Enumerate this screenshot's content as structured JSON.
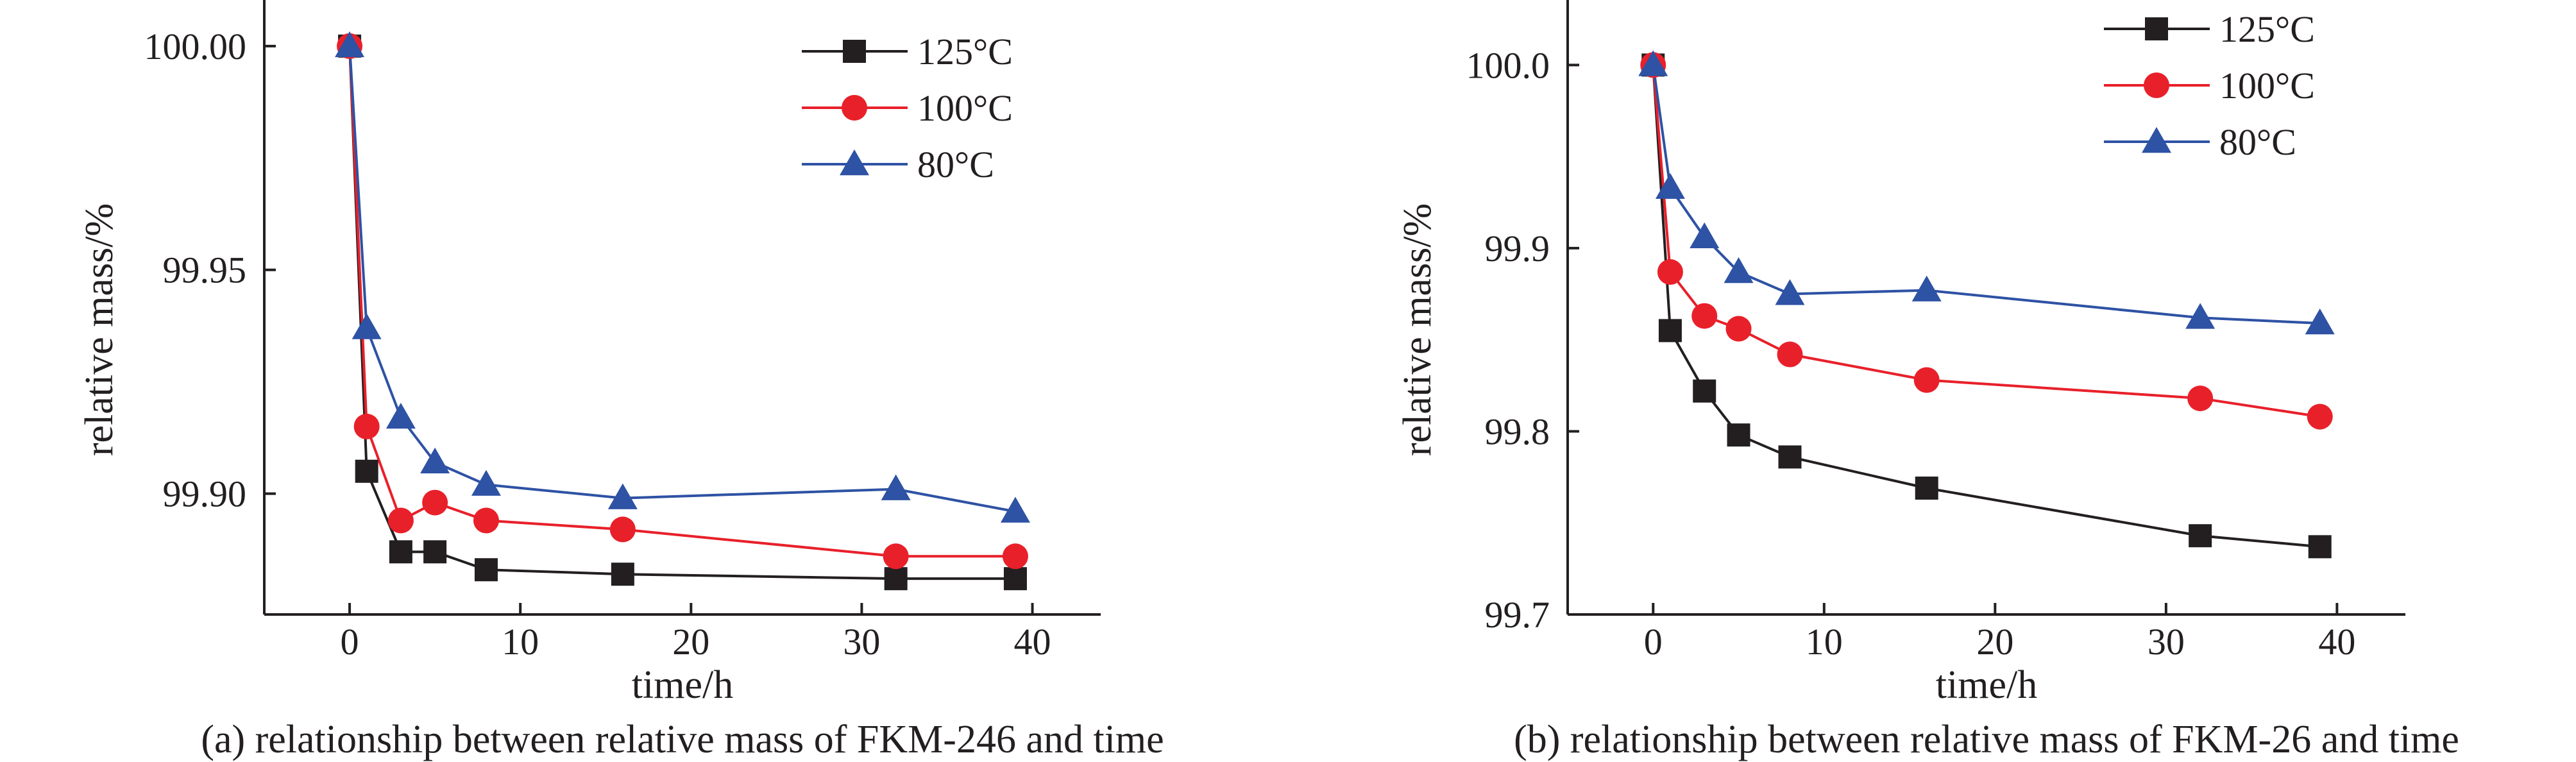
{
  "chart_data": [
    {
      "type": "line",
      "caption": "(a) relationship between relative mass of FKM-246 and time",
      "xlabel": "time/h",
      "ylabel": "relative mass/%",
      "xlim": [
        -5,
        44
      ],
      "ylim": [
        99.873,
        100.006
      ],
      "xticks": [
        0,
        10,
        20,
        30,
        40
      ],
      "yticks": [
        99.9,
        99.95,
        100.0
      ],
      "ytick_labels": [
        "99.90",
        "99.95",
        "100.00"
      ],
      "legend_position": "top-right",
      "series": [
        {
          "name": "125°C",
          "marker": "square",
          "color": "#231f20",
          "x": [
            0,
            1,
            3,
            5,
            8,
            16,
            32,
            39
          ],
          "y": [
            100.0,
            99.905,
            99.887,
            99.887,
            99.883,
            99.882,
            99.881,
            99.881
          ]
        },
        {
          "name": "100°C",
          "marker": "circle",
          "color": "#e8202a",
          "x": [
            0,
            1,
            3,
            5,
            8,
            16,
            32,
            39
          ],
          "y": [
            100.0,
            99.915,
            99.894,
            99.898,
            99.894,
            99.892,
            99.886,
            99.886
          ]
        },
        {
          "name": "80°C",
          "marker": "triangle",
          "color": "#2e52a4",
          "x": [
            0,
            1,
            3,
            5,
            8,
            16,
            32,
            39
          ],
          "y": [
            100.0,
            99.937,
            99.917,
            99.907,
            99.902,
            99.899,
            99.901,
            99.896
          ]
        }
      ]
    },
    {
      "type": "line",
      "caption": "(b) relationship between relative mass of FKM-26 and time",
      "xlabel": "time/h",
      "ylabel": "relative mass/%",
      "xlim": [
        -5,
        44
      ],
      "ylim": [
        99.7,
        100.025
      ],
      "xticks": [
        0,
        10,
        20,
        30,
        40
      ],
      "yticks": [
        99.7,
        99.8,
        99.9,
        100.0
      ],
      "ytick_labels": [
        "99.7",
        "99.8",
        "99.9",
        "100.0"
      ],
      "legend_position": "top-right",
      "series": [
        {
          "name": "125°C",
          "marker": "square",
          "color": "#231f20",
          "x": [
            0,
            1,
            3,
            5,
            8,
            16,
            32,
            39
          ],
          "y": [
            100.0,
            99.855,
            99.822,
            99.798,
            99.786,
            99.769,
            99.743,
            99.737
          ]
        },
        {
          "name": "100°C",
          "marker": "circle",
          "color": "#e8202a",
          "x": [
            0,
            1,
            3,
            5,
            8,
            16,
            32,
            39
          ],
          "y": [
            100.0,
            99.887,
            99.863,
            99.856,
            99.842,
            99.828,
            99.818,
            99.808
          ]
        },
        {
          "name": "80°C",
          "marker": "triangle",
          "color": "#2e52a4",
          "x": [
            0,
            1,
            3,
            5,
            8,
            16,
            32,
            39
          ],
          "y": [
            100.0,
            99.933,
            99.906,
            99.887,
            99.875,
            99.877,
            99.862,
            99.859
          ]
        }
      ]
    }
  ]
}
